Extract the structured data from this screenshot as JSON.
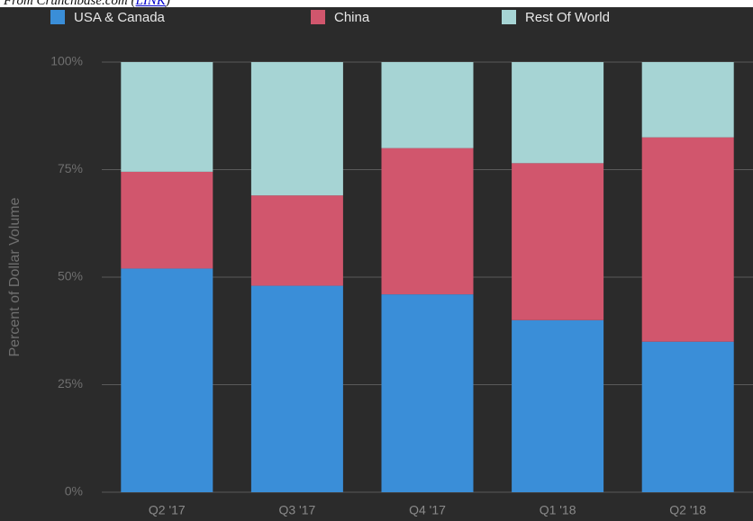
{
  "source": [
    "From Crunchbase.com (",
    "LINK",
    ")"
  ],
  "chart_data": {
    "type": "stacked-bar",
    "ylabel": "Percent of Dollar Volume",
    "categories": [
      "Q2 '17",
      "Q3 '17",
      "Q4 '17",
      "Q1 '18",
      "Q2 '18"
    ],
    "series": [
      {
        "name": "USA & Canada",
        "color": "#3a8ed8",
        "values": [
          52,
          48,
          46,
          40,
          35
        ]
      },
      {
        "name": "China",
        "color": "#d1566d",
        "values": [
          22.5,
          21,
          34,
          36.5,
          47.5
        ]
      },
      {
        "name": "Rest Of World",
        "color": "#a6d4d4",
        "values": [
          25.5,
          31,
          20,
          23.5,
          17.5
        ]
      }
    ],
    "ylim": [
      0,
      100
    ],
    "yticks": [
      {
        "value": 0,
        "label": "0%"
      },
      {
        "value": 25,
        "label": "25%"
      },
      {
        "value": 50,
        "label": "50%"
      },
      {
        "value": 75,
        "label": "75%"
      },
      {
        "value": 100,
        "label": "100%"
      }
    ],
    "grid": true,
    "legend": "top"
  }
}
